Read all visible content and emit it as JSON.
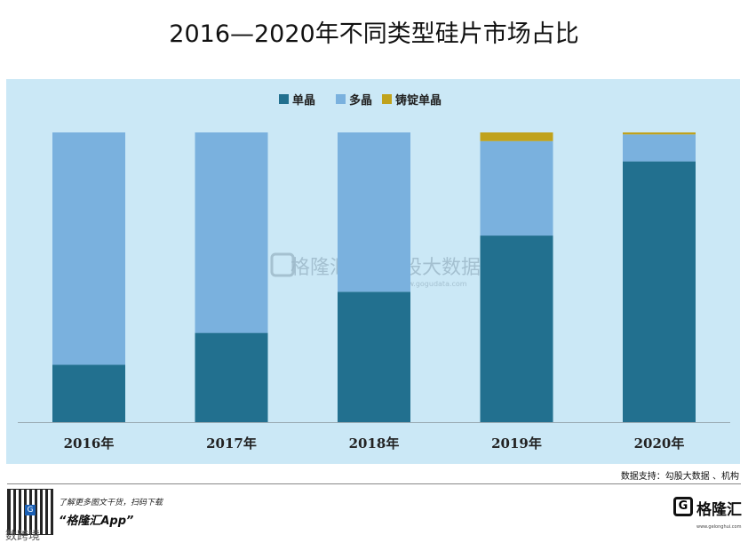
{
  "chart_data": {
    "type": "bar",
    "stacked": true,
    "title": "2016—2020年不同类型硅片市场占比",
    "categories": [
      "2016年",
      "2017年",
      "2018年",
      "2019年",
      "2020年"
    ],
    "series": [
      {
        "name": "单晶",
        "color": "#22708f",
        "values": [
          19.8,
          30.8,
          45.0,
          64.4,
          90.0
        ]
      },
      {
        "name": "多晶",
        "color": "#7ab1de",
        "values": [
          80.2,
          69.2,
          55.0,
          32.6,
          9.3
        ]
      },
      {
        "name": "铸锭单晶",
        "color": "#c0a21c",
        "values": [
          0,
          0,
          0,
          3.0,
          0.7
        ]
      }
    ],
    "ylim": [
      0,
      100
    ],
    "legend": "top-center",
    "grid": false
  },
  "watermark": {
    "brand": "格隆汇",
    "brand2": "勾股大数据",
    "site": "www.gogudata.com"
  },
  "source_text": "数据支持：勾股大数据 、机构",
  "footer": {
    "promo_line1": "了解更多图文干货，扫码下载",
    "promo_line2": "“格隆汇App”",
    "logo_text": "格隆汇",
    "logo_sub": "www.gelonghui.com",
    "corner_text": "数跨境"
  }
}
